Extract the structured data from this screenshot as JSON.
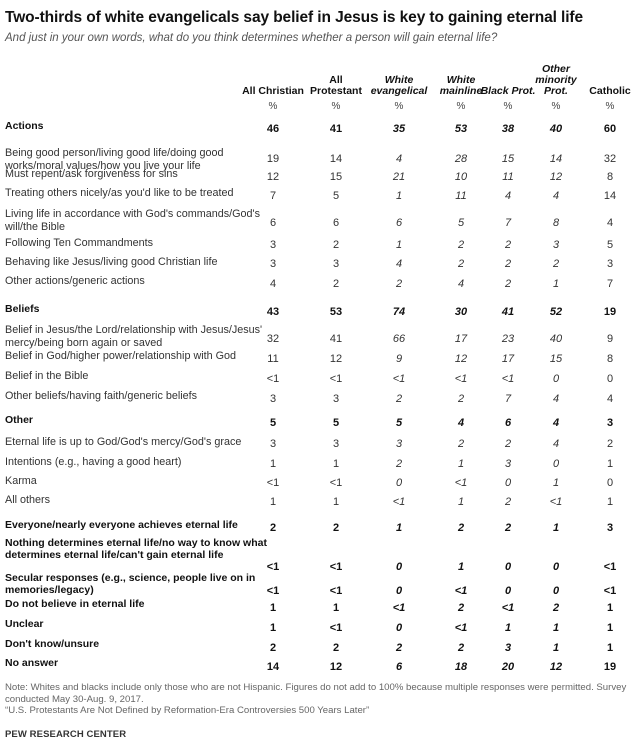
{
  "title": "Two-thirds of white evangelicals say belief in Jesus is key to gaining eternal life",
  "subtitle": "And just in your own words, what do you think determines whether a person will gain eternal life?",
  "columns": [
    {
      "label": "All Christian",
      "italic": false
    },
    {
      "label": "All Protestant",
      "italic": false
    },
    {
      "label": "White evangelical",
      "italic": true
    },
    {
      "label": "White mainline",
      "italic": true
    },
    {
      "label": "Black Prot.",
      "italic": true
    },
    {
      "label": "Other minority Prot.",
      "italic": true
    },
    {
      "label": "Catholic",
      "italic": false
    }
  ],
  "percent_symbol": "%",
  "rows": [
    {
      "label": "Actions",
      "bold": true,
      "values": [
        "46",
        "41",
        "35",
        "53",
        "38",
        "40",
        "60"
      ]
    },
    {
      "label": "Being good person/living good life/doing good works/moral values/how you live your life",
      "bold": false,
      "values": [
        "19",
        "14",
        "4",
        "28",
        "15",
        "14",
        "32"
      ]
    },
    {
      "label": "Must repent/ask forgiveness for sins",
      "bold": false,
      "values": [
        "12",
        "15",
        "21",
        "10",
        "11",
        "12",
        "8"
      ]
    },
    {
      "label": "Treating others nicely/as you'd like to be treated",
      "bold": false,
      "values": [
        "7",
        "5",
        "1",
        "11",
        "4",
        "4",
        "14"
      ]
    },
    {
      "label": "Living life in accordance with God's commands/God's will/the Bible",
      "bold": false,
      "values": [
        "6",
        "6",
        "6",
        "5",
        "7",
        "8",
        "4"
      ]
    },
    {
      "label": "Following Ten Commandments",
      "bold": false,
      "values": [
        "3",
        "2",
        "1",
        "2",
        "2",
        "3",
        "5"
      ]
    },
    {
      "label": "Behaving like Jesus/living good Christian life",
      "bold": false,
      "values": [
        "3",
        "3",
        "4",
        "2",
        "2",
        "2",
        "3"
      ]
    },
    {
      "label": "Other actions/generic actions",
      "bold": false,
      "values": [
        "4",
        "2",
        "2",
        "4",
        "2",
        "1",
        "7"
      ]
    },
    {
      "label": "Beliefs",
      "bold": true,
      "values": [
        "43",
        "53",
        "74",
        "30",
        "41",
        "52",
        "19"
      ]
    },
    {
      "label": "Belief in Jesus/the Lord/relationship with Jesus/Jesus' mercy/being born again or saved",
      "bold": false,
      "values": [
        "32",
        "41",
        "66",
        "17",
        "23",
        "40",
        "9"
      ]
    },
    {
      "label": "Belief in God/higher power/relationship with God",
      "bold": false,
      "values": [
        "11",
        "12",
        "9",
        "12",
        "17",
        "15",
        "8"
      ]
    },
    {
      "label": "Belief in the Bible",
      "bold": false,
      "values": [
        "<1",
        "<1",
        "<1",
        "<1",
        "<1",
        "0",
        "0"
      ]
    },
    {
      "label": "Other beliefs/having faith/generic beliefs",
      "bold": false,
      "values": [
        "3",
        "3",
        "2",
        "2",
        "7",
        "4",
        "4"
      ]
    },
    {
      "label": "Other",
      "bold": true,
      "values": [
        "5",
        "5",
        "5",
        "4",
        "6",
        "4",
        "3"
      ]
    },
    {
      "label": "Eternal life is up to God/God's mercy/God's grace",
      "bold": false,
      "values": [
        "3",
        "3",
        "3",
        "2",
        "2",
        "4",
        "2"
      ]
    },
    {
      "label": "Intentions (e.g., having a good heart)",
      "bold": false,
      "values": [
        "1",
        "1",
        "2",
        "1",
        "3",
        "0",
        "1"
      ]
    },
    {
      "label": "Karma",
      "bold": false,
      "values": [
        "<1",
        "<1",
        "0",
        "<1",
        "0",
        "1",
        "0"
      ]
    },
    {
      "label": "All others",
      "bold": false,
      "values": [
        "1",
        "1",
        "<1",
        "1",
        "2",
        "<1",
        "1"
      ]
    },
    {
      "label": "Everyone/nearly everyone achieves eternal life",
      "bold": true,
      "values": [
        "2",
        "2",
        "1",
        "2",
        "2",
        "1",
        "3"
      ]
    },
    {
      "label": "Nothing determines eternal life/no way to know what determines eternal life/can't gain eternal life",
      "bold": true,
      "values": [
        "<1",
        "<1",
        "0",
        "1",
        "0",
        "0",
        "<1"
      ]
    },
    {
      "label": "Secular responses (e.g., science, people live on in memories/legacy)",
      "bold": true,
      "values": [
        "<1",
        "<1",
        "0",
        "<1",
        "0",
        "0",
        "<1"
      ]
    },
    {
      "label": "Do not believe in eternal life",
      "bold": true,
      "values": [
        "1",
        "1",
        "<1",
        "2",
        "<1",
        "2",
        "1"
      ]
    },
    {
      "label": "Unclear",
      "bold": true,
      "values": [
        "1",
        "<1",
        "0",
        "<1",
        "1",
        "1",
        "1"
      ]
    },
    {
      "label": "Don't know/unsure",
      "bold": true,
      "values": [
        "2",
        "2",
        "2",
        "2",
        "3",
        "1",
        "1"
      ]
    },
    {
      "label": "No answer",
      "bold": true,
      "values": [
        "14",
        "12",
        "6",
        "18",
        "20",
        "12",
        "19"
      ]
    }
  ],
  "chart_data": {
    "type": "table",
    "title": "Two-thirds of white evangelicals say belief in Jesus is key to gaining eternal life",
    "columns": [
      "All Christian",
      "All Protestant",
      "White evangelical",
      "White mainline",
      "Black Prot.",
      "Other minority Prot.",
      "Catholic"
    ],
    "unit": "%"
  },
  "note": "Note: Whites and blacks include only those who are not Hispanic. Figures do not add to 100% because multiple responses were permitted. Survey conducted May 30-Aug. 9, 2017.",
  "source_note": "“U.S. Protestants Are Not Defined by Reformation-Era Controversies 500 Years Later”",
  "footer": "PEW RESEARCH CENTER"
}
